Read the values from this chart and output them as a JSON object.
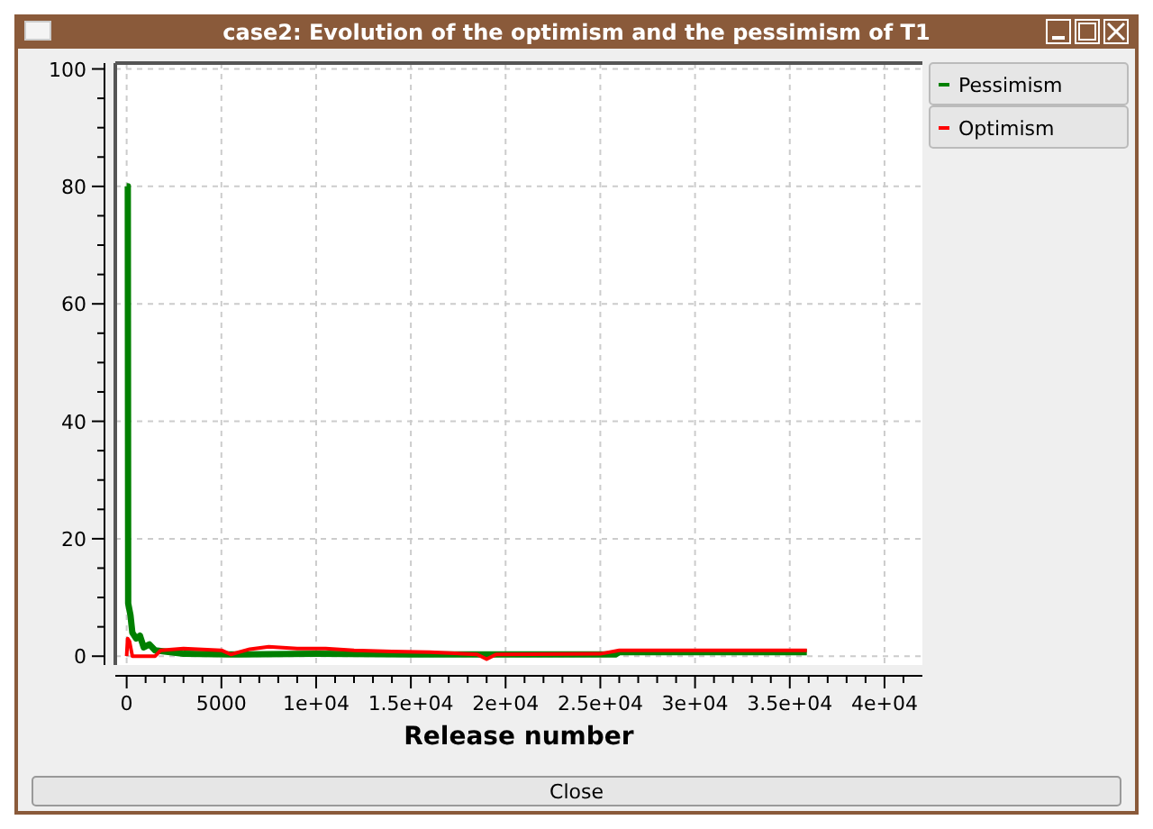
{
  "chart_data": {
    "type": "line",
    "title": "case2: Evolution of the optimism and the pessimism of T1",
    "xlabel": "Release number",
    "xlim": [
      -600,
      42000
    ],
    "ylim": [
      -1.5,
      101
    ],
    "xticks": [
      {
        "value": 0,
        "label": "0"
      },
      {
        "value": 1000,
        "label": null
      },
      {
        "value": 2000,
        "label": null
      },
      {
        "value": 3000,
        "label": null
      },
      {
        "value": 4000,
        "label": null
      },
      {
        "value": 5000,
        "label": "5000"
      },
      {
        "value": 6000,
        "label": null
      },
      {
        "value": 7000,
        "label": null
      },
      {
        "value": 8000,
        "label": null
      },
      {
        "value": 9000,
        "label": null
      },
      {
        "value": 10000,
        "label": "1e+04"
      },
      {
        "value": 11000,
        "label": null
      },
      {
        "value": 12000,
        "label": null
      },
      {
        "value": 13000,
        "label": null
      },
      {
        "value": 14000,
        "label": null
      },
      {
        "value": 15000,
        "label": "1.5e+04"
      },
      {
        "value": 16000,
        "label": null
      },
      {
        "value": 17000,
        "label": null
      },
      {
        "value": 18000,
        "label": null
      },
      {
        "value": 19000,
        "label": null
      },
      {
        "value": 20000,
        "label": "2e+04"
      },
      {
        "value": 21000,
        "label": null
      },
      {
        "value": 22000,
        "label": null
      },
      {
        "value": 23000,
        "label": null
      },
      {
        "value": 24000,
        "label": null
      },
      {
        "value": 25000,
        "label": "2.5e+04"
      },
      {
        "value": 26000,
        "label": null
      },
      {
        "value": 27000,
        "label": null
      },
      {
        "value": 28000,
        "label": null
      },
      {
        "value": 29000,
        "label": null
      },
      {
        "value": 30000,
        "label": "3e+04"
      },
      {
        "value": 31000,
        "label": null
      },
      {
        "value": 32000,
        "label": null
      },
      {
        "value": 33000,
        "label": null
      },
      {
        "value": 34000,
        "label": null
      },
      {
        "value": 35000,
        "label": "3.5e+04"
      },
      {
        "value": 36000,
        "label": null
      },
      {
        "value": 37000,
        "label": null
      },
      {
        "value": 38000,
        "label": null
      },
      {
        "value": 39000,
        "label": null
      },
      {
        "value": 40000,
        "label": "4e+04"
      },
      {
        "value": 41000,
        "label": null
      }
    ],
    "yticks": [
      0,
      {
        "value": 5,
        "label": null
      },
      {
        "value": 10,
        "label": null
      },
      {
        "value": 15,
        "label": null
      },
      20,
      {
        "value": 25,
        "label": null
      },
      {
        "value": 30,
        "label": null
      },
      {
        "value": 35,
        "label": null
      },
      40,
      {
        "value": 45,
        "label": null
      },
      {
        "value": 50,
        "label": null
      },
      {
        "value": 55,
        "label": null
      },
      60,
      {
        "value": 65,
        "label": null
      },
      {
        "value": 70,
        "label": null
      },
      {
        "value": 75,
        "label": null
      },
      80,
      {
        "value": 85,
        "label": null
      },
      {
        "value": 90,
        "label": null
      },
      {
        "value": 95,
        "label": null
      },
      100
    ],
    "grid": true,
    "legend": "top right",
    "line_style": "solid",
    "annotations": [
      "Close"
    ],
    "series": [
      {
        "name": "Pessimism",
        "color": "#008000",
        "x": [
          0,
          60,
          80,
          200,
          300,
          500,
          700,
          900,
          1200,
          1500,
          2000,
          3000,
          6000,
          10000,
          15000,
          20000,
          25800,
          26000,
          35900
        ],
        "values": [
          80,
          80,
          9,
          7,
          4,
          3,
          3.5,
          1.5,
          2,
          1,
          0.8,
          0.4,
          0.3,
          0.4,
          0.3,
          0.3,
          0.3,
          0.7,
          0.7
        ]
      },
      {
        "name": "Optimism",
        "color": "#ff0000",
        "x": [
          0,
          50,
          150,
          300,
          1500,
          1800,
          3000,
          5000,
          5500,
          6500,
          7500,
          9000,
          10500,
          12000,
          14000,
          16000,
          18500,
          19000,
          19500,
          25000,
          26000,
          35900
        ],
        "values": [
          0,
          3,
          2.5,
          0,
          0,
          1,
          1.3,
          1,
          0.3,
          1.2,
          1.6,
          1.3,
          1.3,
          1,
          0.8,
          0.7,
          0.3,
          -0.5,
          0.3,
          0.4,
          1,
          1
        ]
      }
    ]
  }
}
